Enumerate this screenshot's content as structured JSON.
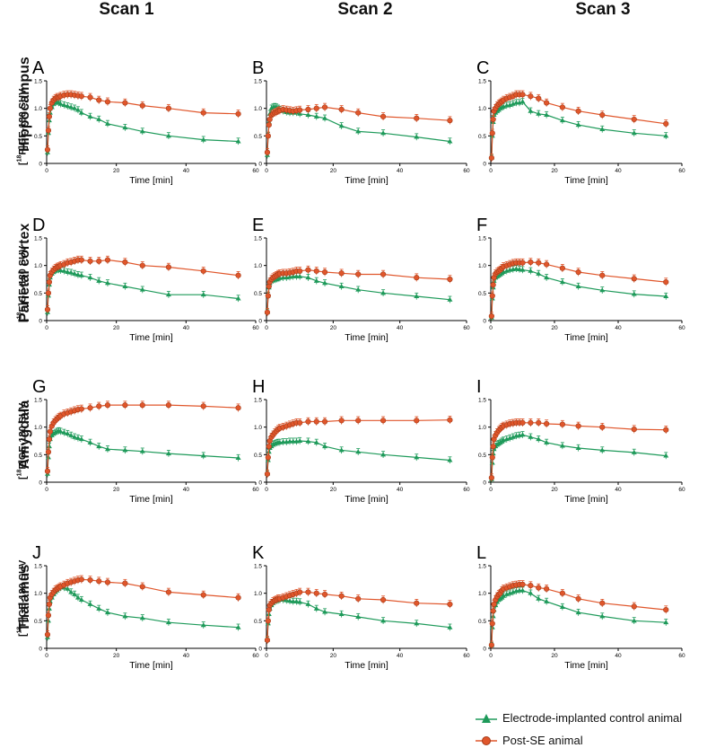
{
  "column_titles": [
    "Scan 1",
    "Scan 2",
    "Scan 3"
  ],
  "row_titles": [
    "Hippocampus",
    "Parietal cortex",
    "Amygdala",
    "Thalamus"
  ],
  "ylabel": {
    "iso": "18",
    "rest": "F]GE-180 SUV",
    "open": "["
  },
  "legend": {
    "control": {
      "label": "Electrode-implanted control animal",
      "color": "#1e9a5a"
    },
    "post_se": {
      "label": "Post-SE animal",
      "color": "#e0562b"
    }
  },
  "chart_data": {
    "type": "line",
    "xlabel": "Time [min]",
    "ylabel": "[18F]GE-180 SUV",
    "xlim": [
      0,
      60
    ],
    "ylim": [
      0,
      1.5
    ],
    "xticks": [
      0,
      20,
      40,
      60
    ],
    "yticks": [
      0,
      0.5,
      1.0,
      1.5
    ],
    "ytick_labels": [
      "0",
      "0.5",
      "1.0",
      "1.5"
    ],
    "x": [
      0.25,
      0.5,
      0.75,
      1,
      1.5,
      2,
      2.5,
      3,
      3.5,
      4,
      5,
      6,
      7,
      8,
      9,
      10,
      12.5,
      15,
      17.5,
      22.5,
      27.5,
      35,
      45,
      55
    ],
    "panels": [
      {
        "letter": "A",
        "control": [
          0.2,
          0.55,
          0.78,
          0.92,
          1.02,
          1.08,
          1.1,
          1.12,
          1.1,
          1.08,
          1.06,
          1.04,
          1.02,
          1.0,
          0.97,
          0.92,
          0.85,
          0.8,
          0.72,
          0.65,
          0.58,
          0.5,
          0.43,
          0.4
        ],
        "post_se": [
          0.25,
          0.6,
          0.85,
          1.0,
          1.1,
          1.15,
          1.18,
          1.2,
          1.2,
          1.22,
          1.24,
          1.25,
          1.25,
          1.24,
          1.23,
          1.22,
          1.2,
          1.15,
          1.12,
          1.1,
          1.05,
          1.0,
          0.92,
          0.9
        ]
      },
      {
        "letter": "B",
        "control": [
          0.15,
          0.5,
          0.75,
          0.9,
          1.0,
          1.02,
          1.03,
          1.02,
          1.0,
          0.98,
          0.95,
          0.93,
          0.92,
          0.92,
          0.92,
          0.9,
          0.88,
          0.85,
          0.82,
          0.68,
          0.58,
          0.55,
          0.48,
          0.4
        ],
        "post_se": [
          0.2,
          0.5,
          0.7,
          0.8,
          0.88,
          0.9,
          0.92,
          0.93,
          0.95,
          0.96,
          0.98,
          0.97,
          0.96,
          0.95,
          0.96,
          0.97,
          0.98,
          1.0,
          1.02,
          0.98,
          0.92,
          0.85,
          0.82,
          0.78
        ]
      },
      {
        "letter": "C",
        "control": [
          0.1,
          0.5,
          0.75,
          0.88,
          0.92,
          0.95,
          0.97,
          1.0,
          1.02,
          1.03,
          1.05,
          1.06,
          1.08,
          1.1,
          1.1,
          1.12,
          0.95,
          0.9,
          0.88,
          0.78,
          0.7,
          0.62,
          0.55,
          0.5
        ],
        "post_se": [
          0.1,
          0.55,
          0.8,
          0.95,
          1.0,
          1.05,
          1.08,
          1.1,
          1.12,
          1.15,
          1.18,
          1.2,
          1.22,
          1.25,
          1.25,
          1.25,
          1.22,
          1.18,
          1.1,
          1.02,
          0.95,
          0.88,
          0.8,
          0.72
        ]
      },
      {
        "letter": "D",
        "control": [
          0.15,
          0.45,
          0.65,
          0.78,
          0.85,
          0.88,
          0.9,
          0.92,
          0.92,
          0.91,
          0.9,
          0.88,
          0.87,
          0.85,
          0.83,
          0.82,
          0.78,
          0.72,
          0.68,
          0.62,
          0.56,
          0.47,
          0.47,
          0.4
        ],
        "post_se": [
          0.2,
          0.5,
          0.7,
          0.82,
          0.88,
          0.92,
          0.95,
          0.97,
          0.98,
          1.0,
          1.02,
          1.05,
          1.06,
          1.08,
          1.1,
          1.1,
          1.08,
          1.08,
          1.1,
          1.06,
          1.0,
          0.97,
          0.9,
          0.82
        ]
      },
      {
        "letter": "E",
        "control": [
          0.15,
          0.45,
          0.6,
          0.68,
          0.72,
          0.73,
          0.74,
          0.75,
          0.76,
          0.77,
          0.78,
          0.78,
          0.79,
          0.8,
          0.8,
          0.8,
          0.78,
          0.72,
          0.68,
          0.62,
          0.56,
          0.5,
          0.44,
          0.38
        ],
        "post_se": [
          0.15,
          0.45,
          0.62,
          0.7,
          0.75,
          0.78,
          0.8,
          0.82,
          0.84,
          0.85,
          0.86,
          0.86,
          0.87,
          0.88,
          0.9,
          0.9,
          0.92,
          0.9,
          0.88,
          0.86,
          0.84,
          0.84,
          0.78,
          0.75
        ]
      },
      {
        "letter": "F",
        "control": [
          0.05,
          0.4,
          0.6,
          0.72,
          0.78,
          0.8,
          0.82,
          0.84,
          0.86,
          0.88,
          0.9,
          0.92,
          0.93,
          0.94,
          0.93,
          0.92,
          0.9,
          0.85,
          0.78,
          0.7,
          0.62,
          0.55,
          0.48,
          0.44
        ],
        "post_se": [
          0.08,
          0.45,
          0.65,
          0.78,
          0.85,
          0.88,
          0.9,
          0.92,
          0.95,
          0.98,
          1.0,
          1.02,
          1.04,
          1.05,
          1.05,
          1.05,
          1.06,
          1.05,
          1.02,
          0.95,
          0.88,
          0.82,
          0.76,
          0.7
        ]
      },
      {
        "letter": "G",
        "control": [
          0.15,
          0.45,
          0.65,
          0.78,
          0.85,
          0.88,
          0.9,
          0.92,
          0.93,
          0.92,
          0.9,
          0.88,
          0.85,
          0.82,
          0.8,
          0.78,
          0.72,
          0.65,
          0.6,
          0.58,
          0.56,
          0.52,
          0.48,
          0.44
        ],
        "post_se": [
          0.2,
          0.55,
          0.78,
          0.92,
          1.02,
          1.08,
          1.12,
          1.15,
          1.18,
          1.2,
          1.24,
          1.26,
          1.28,
          1.3,
          1.32,
          1.33,
          1.35,
          1.38,
          1.4,
          1.4,
          1.4,
          1.4,
          1.38,
          1.35
        ]
      },
      {
        "letter": "H",
        "control": [
          0.15,
          0.4,
          0.55,
          0.62,
          0.65,
          0.68,
          0.7,
          0.71,
          0.72,
          0.72,
          0.73,
          0.73,
          0.74,
          0.74,
          0.74,
          0.75,
          0.74,
          0.72,
          0.65,
          0.58,
          0.55,
          0.5,
          0.45,
          0.4
        ],
        "post_se": [
          0.15,
          0.45,
          0.65,
          0.75,
          0.82,
          0.86,
          0.9,
          0.93,
          0.96,
          0.98,
          1.0,
          1.02,
          1.04,
          1.06,
          1.08,
          1.08,
          1.1,
          1.1,
          1.1,
          1.12,
          1.12,
          1.12,
          1.12,
          1.13
        ]
      },
      {
        "letter": "I",
        "control": [
          0.05,
          0.35,
          0.52,
          0.6,
          0.65,
          0.68,
          0.7,
          0.72,
          0.74,
          0.76,
          0.78,
          0.8,
          0.82,
          0.84,
          0.85,
          0.86,
          0.82,
          0.78,
          0.72,
          0.66,
          0.62,
          0.58,
          0.54,
          0.48
        ],
        "post_se": [
          0.08,
          0.45,
          0.65,
          0.78,
          0.85,
          0.9,
          0.94,
          0.97,
          1.0,
          1.02,
          1.04,
          1.06,
          1.07,
          1.08,
          1.08,
          1.08,
          1.08,
          1.08,
          1.06,
          1.05,
          1.02,
          1.0,
          0.96,
          0.95
        ]
      },
      {
        "letter": "J",
        "control": [
          0.2,
          0.5,
          0.72,
          0.85,
          0.92,
          0.98,
          1.02,
          1.05,
          1.08,
          1.1,
          1.1,
          1.08,
          1.02,
          0.98,
          0.92,
          0.88,
          0.8,
          0.72,
          0.65,
          0.58,
          0.55,
          0.47,
          0.42,
          0.38
        ],
        "post_se": [
          0.25,
          0.6,
          0.8,
          0.92,
          0.98,
          1.02,
          1.06,
          1.08,
          1.1,
          1.12,
          1.15,
          1.18,
          1.2,
          1.22,
          1.24,
          1.25,
          1.24,
          1.22,
          1.2,
          1.18,
          1.12,
          1.02,
          0.97,
          0.92
        ]
      },
      {
        "letter": "K",
        "control": [
          0.15,
          0.45,
          0.62,
          0.72,
          0.78,
          0.82,
          0.85,
          0.86,
          0.87,
          0.88,
          0.88,
          0.87,
          0.86,
          0.85,
          0.85,
          0.84,
          0.8,
          0.72,
          0.66,
          0.62,
          0.57,
          0.5,
          0.45,
          0.38
        ],
        "post_se": [
          0.15,
          0.5,
          0.7,
          0.78,
          0.82,
          0.85,
          0.87,
          0.88,
          0.9,
          0.9,
          0.92,
          0.94,
          0.96,
          0.98,
          1.0,
          1.02,
          1.02,
          1.0,
          0.98,
          0.95,
          0.9,
          0.88,
          0.82,
          0.8
        ]
      },
      {
        "letter": "L",
        "control": [
          0.05,
          0.38,
          0.58,
          0.7,
          0.78,
          0.84,
          0.88,
          0.9,
          0.92,
          0.95,
          0.98,
          1.0,
          1.02,
          1.04,
          1.05,
          1.05,
          1.0,
          0.9,
          0.85,
          0.75,
          0.65,
          0.58,
          0.5,
          0.47
        ],
        "post_se": [
          0.06,
          0.45,
          0.68,
          0.8,
          0.88,
          0.94,
          0.98,
          1.0,
          1.05,
          1.08,
          1.1,
          1.12,
          1.14,
          1.15,
          1.16,
          1.16,
          1.14,
          1.1,
          1.08,
          1.0,
          0.9,
          0.82,
          0.76,
          0.7
        ]
      }
    ]
  }
}
